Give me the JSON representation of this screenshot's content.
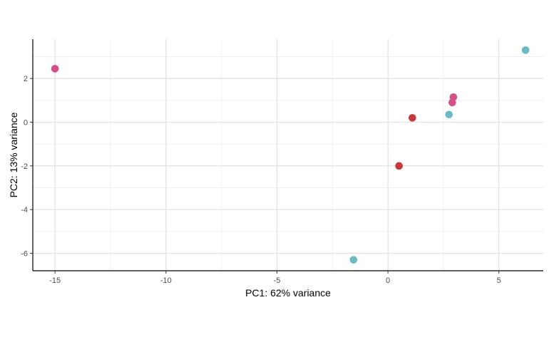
{
  "chart_data": {
    "type": "scatter",
    "title": "",
    "xlabel": "PC1: 62% variance",
    "ylabel": "PC2: 13% variance",
    "xlim": [
      -16,
      7
    ],
    "ylim": [
      -6.8,
      3.8
    ],
    "x_ticks": [
      -15,
      -10,
      -5,
      0,
      5
    ],
    "x_tick_labels": [
      "-15",
      "-10",
      "-5",
      "0",
      "5"
    ],
    "y_ticks": [
      -6,
      -4,
      -2,
      0,
      2
    ],
    "y_tick_labels": [
      "-6",
      "-4",
      "-2",
      "0",
      "2"
    ],
    "grid": true,
    "legend": "none",
    "series": [
      {
        "color": "#C5383B",
        "points": [
          {
            "x": 1.1,
            "y": 0.2
          },
          {
            "x": 0.5,
            "y": -2.0
          }
        ]
      },
      {
        "color": "#D45087",
        "points": [
          {
            "x": -15.0,
            "y": 2.45
          },
          {
            "x": 2.95,
            "y": 1.15
          },
          {
            "x": 2.9,
            "y": 0.9
          }
        ]
      },
      {
        "color": "#6CBAC6",
        "points": [
          {
            "x": 6.2,
            "y": 3.3
          },
          {
            "x": 2.75,
            "y": 0.35
          },
          {
            "x": -1.55,
            "y": -6.3
          }
        ]
      }
    ]
  }
}
